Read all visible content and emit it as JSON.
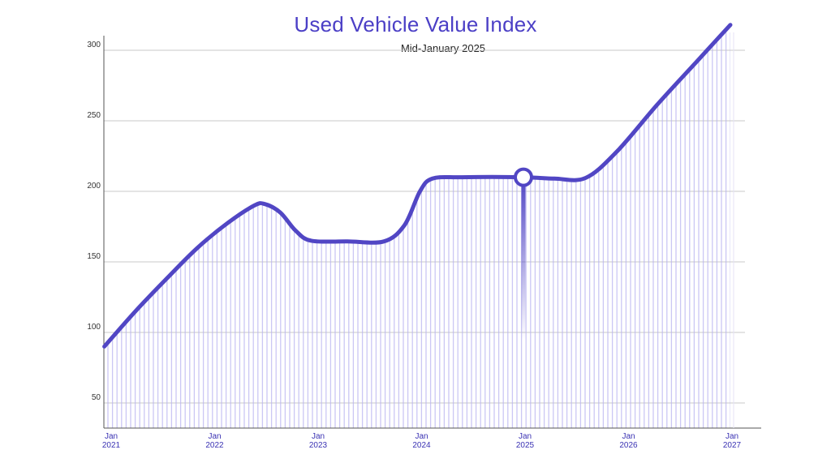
{
  "chart_data": {
    "type": "area",
    "title": "Used Vehicle Value Index",
    "subtitle": "Mid-January 2025",
    "xlabel": "",
    "ylabel": "",
    "y_ticks": [
      50,
      100,
      150,
      200,
      250,
      300
    ],
    "x_ticks": [
      {
        "year": 2021,
        "label_top": "Jan",
        "label_bottom": "2021"
      },
      {
        "year": 2022,
        "label_top": "Jan",
        "label_bottom": "2022"
      },
      {
        "year": 2023,
        "label_top": "Jan",
        "label_bottom": "2023"
      },
      {
        "year": 2024,
        "label_top": "Jan",
        "label_bottom": "2024"
      },
      {
        "year": 2025,
        "label_top": "Jan",
        "label_bottom": "2025"
      },
      {
        "year": 2026,
        "label_top": "Jan",
        "label_bottom": "2026"
      },
      {
        "year": 2027,
        "label_top": "Jan",
        "label_bottom": "2027"
      }
    ],
    "xlim": [
      2021,
      2027.1
    ],
    "ylim": [
      30,
      320
    ],
    "grid": true,
    "series": [
      {
        "name": "",
        "color": "#5146c4",
        "points": [
          {
            "x": 2020.95,
            "y": 90
          },
          {
            "x": 2021.25,
            "y": 115
          },
          {
            "x": 2021.55,
            "y": 138
          },
          {
            "x": 2021.85,
            "y": 160
          },
          {
            "x": 2022.15,
            "y": 178
          },
          {
            "x": 2022.4,
            "y": 190
          },
          {
            "x": 2022.5,
            "y": 191
          },
          {
            "x": 2022.65,
            "y": 185
          },
          {
            "x": 2022.8,
            "y": 172
          },
          {
            "x": 2022.95,
            "y": 165
          },
          {
            "x": 2023.3,
            "y": 164.5
          },
          {
            "x": 2023.65,
            "y": 164.5
          },
          {
            "x": 2023.85,
            "y": 176
          },
          {
            "x": 2024.0,
            "y": 200
          },
          {
            "x": 2024.12,
            "y": 209
          },
          {
            "x": 2024.4,
            "y": 210
          },
          {
            "x": 2025.0,
            "y": 210
          },
          {
            "x": 2025.3,
            "y": 209
          },
          {
            "x": 2025.6,
            "y": 209.5
          },
          {
            "x": 2025.9,
            "y": 228
          },
          {
            "x": 2026.3,
            "y": 262
          },
          {
            "x": 2026.7,
            "y": 294
          },
          {
            "x": 2027.0,
            "y": 318
          }
        ]
      }
    ],
    "highlight": {
      "x": 2025.0,
      "y": 210
    }
  },
  "colors": {
    "accent": "#5146c4",
    "area_stripe": "#b9b4f0",
    "grid": "#c8c8c8",
    "axis": "#555555"
  }
}
